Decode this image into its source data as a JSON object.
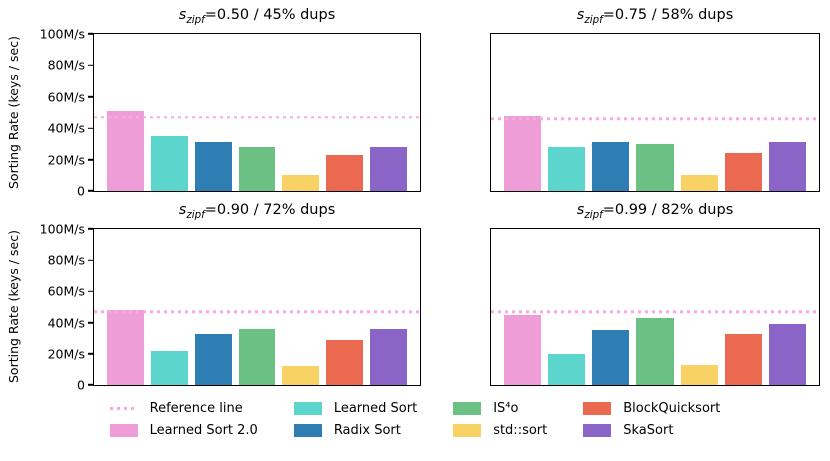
{
  "figure": {
    "ylabel": "Sorting Rate (keys / sec)",
    "title_var": "s",
    "title_sub": "zipf",
    "yticks": [
      {
        "v": 0,
        "label": "0"
      },
      {
        "v": 20,
        "label": "20M/s"
      },
      {
        "v": 40,
        "label": "40M/s"
      },
      {
        "v": 60,
        "label": "60M/s"
      },
      {
        "v": 80,
        "label": "80M/s"
      },
      {
        "v": 100,
        "label": "100M/s"
      }
    ]
  },
  "colors": {
    "reference_line": "#F9A9DF",
    "learned_sort_2_0": "#EE9DD6",
    "learned_sort": "#5CD5CD",
    "radix_sort": "#2E7EB3",
    "is4o": "#6BC083",
    "std_sort": "#F8D264",
    "blockquicksort": "#EB6951",
    "skasort": "#8A64C6",
    "axis": "#000000"
  },
  "chart_data": [
    {
      "type": "bar",
      "title": "s_zipf=0.50 / 45% dups",
      "title_rest": "=0.50 / 45% dups",
      "categories": [
        "Learned Sort 2.0",
        "Learned Sort",
        "Radix Sort",
        "IS⁴o",
        "std::sort",
        "BlockQuicksort",
        "SkaSort"
      ],
      "values": [
        51,
        35,
        31,
        28,
        10,
        23,
        28
      ],
      "reference_line": 47,
      "xlabel": "",
      "ylabel": "Sorting Rate (keys / sec)",
      "ylim": [
        0,
        100
      ],
      "grid": false
    },
    {
      "type": "bar",
      "title": "s_zipf=0.75 / 58% dups",
      "title_rest": "=0.75 / 58% dups",
      "categories": [
        "Learned Sort 2.0",
        "Learned Sort",
        "Radix Sort",
        "IS⁴o",
        "std::sort",
        "BlockQuicksort",
        "SkaSort"
      ],
      "values": [
        48,
        28,
        31,
        30,
        10,
        24,
        31
      ],
      "reference_line": 46,
      "xlabel": "",
      "ylabel": "Sorting Rate (keys / sec)",
      "ylim": [
        0,
        100
      ],
      "grid": false
    },
    {
      "type": "bar",
      "title": "s_zipf=0.90 / 72% dups",
      "title_rest": "=0.90 / 72% dups",
      "categories": [
        "Learned Sort 2.0",
        "Learned Sort",
        "Radix Sort",
        "IS⁴o",
        "std::sort",
        "BlockQuicksort",
        "SkaSort"
      ],
      "values": [
        48,
        22,
        33,
        36,
        12,
        29,
        36
      ],
      "reference_line": 47,
      "xlabel": "",
      "ylabel": "Sorting Rate (keys / sec)",
      "ylim": [
        0,
        100
      ],
      "grid": false
    },
    {
      "type": "bar",
      "title": "s_zipf=0.99 / 82% dups",
      "title_rest": "=0.99 / 82% dups",
      "categories": [
        "Learned Sort 2.0",
        "Learned Sort",
        "Radix Sort",
        "IS⁴o",
        "std::sort",
        "BlockQuicksort",
        "SkaSort"
      ],
      "values": [
        45,
        20,
        35,
        43,
        13,
        33,
        39
      ],
      "reference_line": 47,
      "xlabel": "",
      "ylabel": "Sorting Rate (keys / sec)",
      "ylim": [
        0,
        100
      ],
      "grid": false
    }
  ],
  "legend": {
    "position": "bottom",
    "columns": [
      [
        {
          "label": "Reference line",
          "swatch": "dotted-line",
          "color": "#F9A9DF"
        },
        {
          "label": "Learned Sort 2.0",
          "swatch": "patch",
          "color": "#EE9DD6"
        }
      ],
      [
        {
          "label": "Learned Sort",
          "swatch": "patch",
          "color": "#5CD5CD"
        },
        {
          "label": "Radix Sort",
          "swatch": "patch",
          "color": "#2E7EB3"
        }
      ],
      [
        {
          "label": "IS⁴o",
          "swatch": "patch",
          "color": "#6BC083"
        },
        {
          "label": "std::sort",
          "swatch": "patch",
          "color": "#F8D264"
        }
      ],
      [
        {
          "label": "BlockQuicksort",
          "swatch": "patch",
          "color": "#EB6951"
        },
        {
          "label": "SkaSort",
          "swatch": "patch",
          "color": "#8A64C6"
        }
      ]
    ]
  }
}
